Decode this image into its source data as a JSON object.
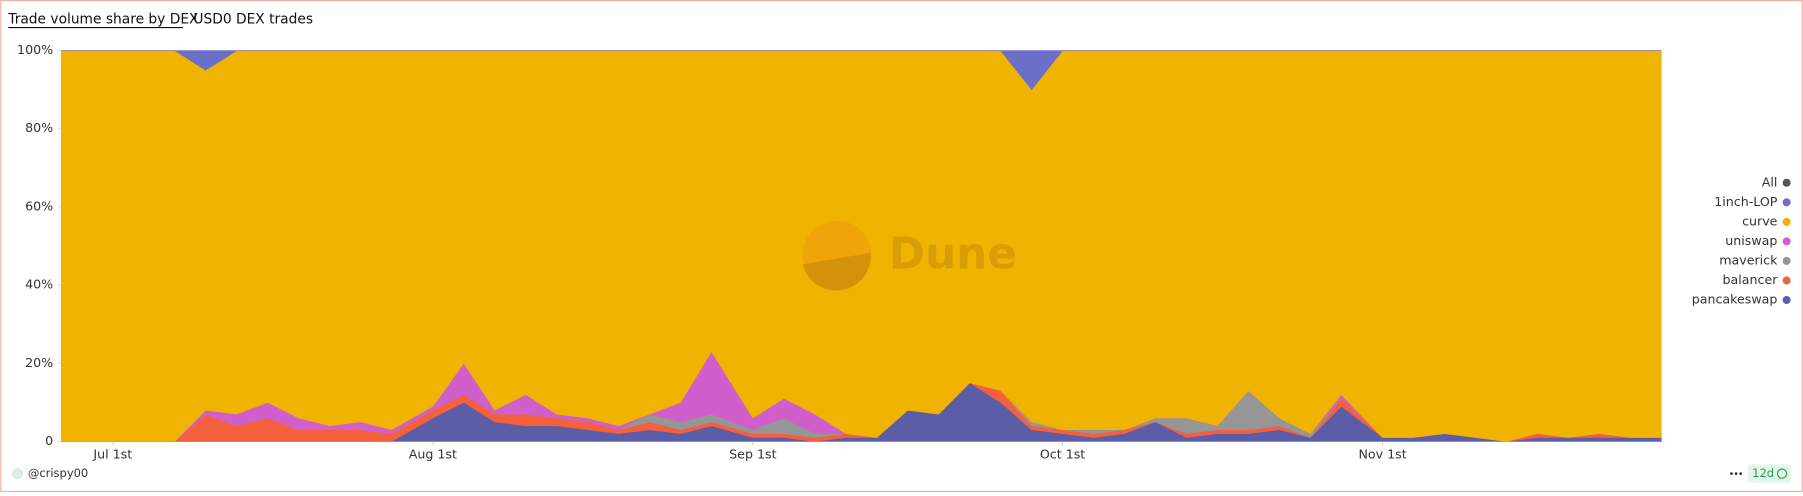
{
  "header": {
    "title": "Trade volume share by DEX",
    "subtitle": "USD0 DEX trades"
  },
  "chart_data": {
    "type": "stacked_area_percent",
    "watermark": "Dune",
    "legend_toggle": "All",
    "legend_position": "right",
    "x": [
      "Jun 26th",
      "Jun 28th",
      "Jul 1st",
      "Jul 4th",
      "Jul 7th",
      "Jul 10th",
      "Jul 13th",
      "Jul 16th",
      "Jul 19th",
      "Jul 22nd",
      "Jul 25th",
      "Jul 28th",
      "Aug 1st",
      "Aug 4th",
      "Aug 7th",
      "Aug 10th",
      "Aug 13th",
      "Aug 16th",
      "Aug 19th",
      "Aug 22nd",
      "Aug 25th",
      "Aug 28th",
      "Sep 1st",
      "Sep 4th",
      "Sep 7th",
      "Sep 10th",
      "Sep 13th",
      "Sep 16th",
      "Sep 19th",
      "Sep 22nd",
      "Sep 25th",
      "Sep 28th",
      "Oct 1st",
      "Oct 4th",
      "Oct 7th",
      "Oct 10th",
      "Oct 13th",
      "Oct 16th",
      "Oct 19th",
      "Oct 22nd",
      "Oct 25th",
      "Oct 28th",
      "Nov 1st",
      "Nov 4th",
      "Nov 7th",
      "Nov 10th",
      "Nov 13th",
      "Nov 16th",
      "Nov 19th",
      "Nov 22nd",
      "Nov 25th",
      "Nov 28th"
    ],
    "xticks": [
      "Jul 1st",
      "Aug 1st",
      "Sep 1st",
      "Oct 1st",
      "Nov 1st"
    ],
    "ylim": [
      0,
      100
    ],
    "yticks": [
      0,
      {
        "value": 20,
        "label": "20%"
      },
      {
        "value": 40,
        "label": "40%"
      },
      {
        "value": 60,
        "label": "60%"
      },
      {
        "value": 80,
        "label": "80%"
      },
      {
        "value": 100,
        "label": "100%"
      }
    ],
    "series": [
      {
        "name": "pancakeswap",
        "color": "#5b5ea6",
        "values": [
          0,
          0,
          0,
          0,
          0,
          0,
          0,
          0,
          0,
          0,
          0,
          0,
          6,
          10,
          5,
          4,
          4,
          3,
          2,
          3,
          2,
          4,
          1,
          1,
          0,
          1,
          1,
          8,
          7,
          15,
          10,
          3,
          2,
          1,
          2,
          5,
          1,
          2,
          2,
          3,
          1,
          9,
          1,
          1,
          2,
          1,
          0,
          1,
          1,
          1,
          1,
          1
        ]
      },
      {
        "name": "balancer",
        "color": "#f4603e",
        "values": [
          0,
          0,
          0,
          0,
          0,
          7,
          4,
          6,
          3,
          3,
          3,
          2,
          2,
          2,
          2,
          3,
          2,
          2,
          1,
          2,
          1,
          1,
          1,
          1,
          1,
          1,
          0,
          0,
          0,
          0,
          3,
          1,
          1,
          1,
          1,
          0,
          1,
          1,
          1,
          1,
          0,
          2,
          0,
          0,
          0,
          0,
          0,
          1,
          0,
          1,
          0,
          0
        ]
      },
      {
        "name": "maverick",
        "color": "#969696",
        "values": [
          0,
          0,
          0,
          0,
          0,
          0,
          0,
          0,
          0,
          0,
          0,
          0,
          0,
          0,
          0,
          0,
          0,
          0,
          0,
          2,
          2,
          2,
          1,
          4,
          1,
          0,
          0,
          0,
          0,
          0,
          0,
          1,
          0,
          1,
          0,
          1,
          4,
          1,
          10,
          2,
          1,
          0,
          0,
          0,
          0,
          0,
          0,
          0,
          0,
          0,
          0,
          0
        ]
      },
      {
        "name": "uniswap",
        "color": "#d15fcb",
        "values": [
          0,
          0,
          0,
          0,
          0,
          1,
          3,
          4,
          3,
          1,
          2,
          1,
          1,
          8,
          1,
          5,
          1,
          1,
          1,
          0,
          5,
          16,
          3,
          5,
          5,
          0,
          0,
          0,
          0,
          0,
          0,
          0,
          0,
          0,
          0,
          0,
          0,
          0,
          0,
          0,
          0,
          1,
          0,
          0,
          0,
          0,
          0,
          0,
          0,
          0,
          0,
          0
        ]
      },
      {
        "name": "curve",
        "color": "#f0b400",
        "values": [
          100,
          100,
          100,
          100,
          100,
          87,
          93,
          90,
          94,
          96,
          95,
          97,
          91,
          80,
          92,
          88,
          93,
          94,
          96,
          93,
          90,
          77,
          94,
          89,
          93,
          98,
          99,
          92,
          93,
          85,
          87,
          85,
          97,
          97,
          97,
          94,
          94,
          96,
          87,
          94,
          98,
          88,
          99,
          99,
          98,
          99,
          100,
          98,
          99,
          98,
          99,
          99
        ]
      },
      {
        "name": "1inch-LOP",
        "color": "#6b6fc8",
        "values": [
          0,
          0,
          0,
          0,
          0,
          5,
          0,
          0,
          0,
          0,
          0,
          0,
          0,
          0,
          0,
          0,
          0,
          0,
          0,
          0,
          0,
          0,
          0,
          0,
          0,
          0,
          0,
          0,
          0,
          0,
          0,
          10,
          0,
          0,
          0,
          0,
          0,
          0,
          0,
          0,
          0,
          0,
          0,
          0,
          0,
          0,
          0,
          0,
          0,
          0,
          0,
          0
        ]
      }
    ]
  },
  "footer": {
    "author": "@crispy00",
    "age": "12d"
  }
}
